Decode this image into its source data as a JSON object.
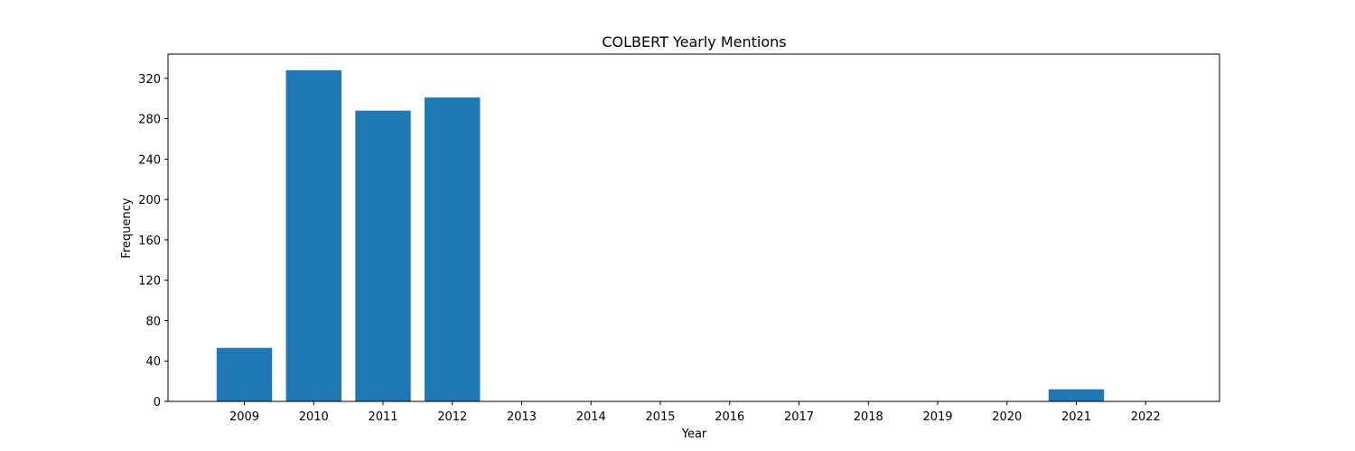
{
  "chart_data": {
    "type": "bar",
    "title": "COLBERT Yearly Mentions",
    "xlabel": "Year",
    "ylabel": "Frequency",
    "categories": [
      "2009",
      "2010",
      "2011",
      "2012",
      "2013",
      "2014",
      "2015",
      "2016",
      "2017",
      "2018",
      "2019",
      "2020",
      "2021",
      "2022"
    ],
    "values": [
      53,
      328,
      288,
      301,
      0,
      0,
      0,
      0,
      0,
      0,
      0,
      0,
      12,
      0
    ],
    "yticks": [
      0,
      40,
      80,
      120,
      160,
      200,
      240,
      280,
      320
    ],
    "ylim": [
      0,
      344
    ],
    "bar_color": "#1f77b4",
    "grid": false,
    "legend": "none"
  }
}
